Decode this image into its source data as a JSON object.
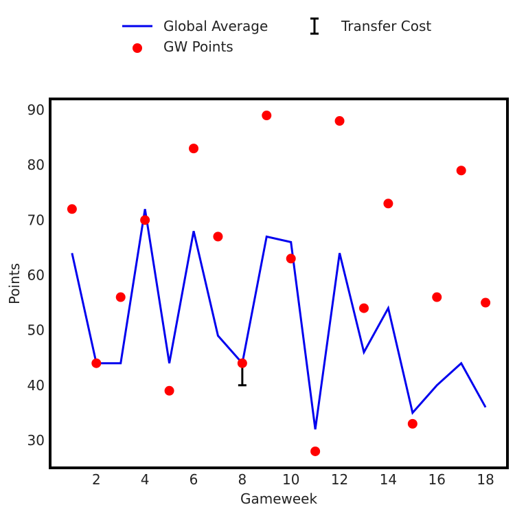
{
  "chart_data": {
    "type": "line",
    "xlabel": "Gameweek",
    "ylabel": "Points",
    "xlim": [
      0.1,
      18.9
    ],
    "ylim": [
      25,
      92
    ],
    "xticks": [
      2,
      4,
      6,
      8,
      10,
      12,
      14,
      16,
      18
    ],
    "yticks": [
      30,
      40,
      50,
      60,
      70,
      80,
      90
    ],
    "grid": false,
    "legend_position": "top-center",
    "colors": {
      "line": "#0000ee",
      "points": "#ff0000",
      "transfer": "#000000"
    },
    "series": [
      {
        "name": "Global Average",
        "kind": "line",
        "x": [
          1,
          2,
          3,
          4,
          5,
          6,
          7,
          8,
          9,
          10,
          11,
          12,
          13,
          14,
          15,
          16,
          17,
          18
        ],
        "values": [
          64,
          44,
          44,
          72,
          44,
          68,
          49,
          44,
          67,
          66,
          32,
          64,
          46,
          54,
          35,
          40,
          44,
          36
        ]
      },
      {
        "name": "GW Points",
        "kind": "scatter",
        "x": [
          1,
          2,
          3,
          4,
          5,
          6,
          7,
          8,
          9,
          10,
          11,
          12,
          13,
          14,
          15,
          16,
          17,
          18
        ],
        "values": [
          72,
          44,
          56,
          70,
          39,
          83,
          67,
          44,
          89,
          63,
          28,
          88,
          54,
          73,
          33,
          56,
          79,
          55
        ]
      },
      {
        "name": "Transfer Cost",
        "kind": "errorbar",
        "x": [
          8
        ],
        "from": [
          44
        ],
        "to": [
          40
        ]
      }
    ]
  }
}
